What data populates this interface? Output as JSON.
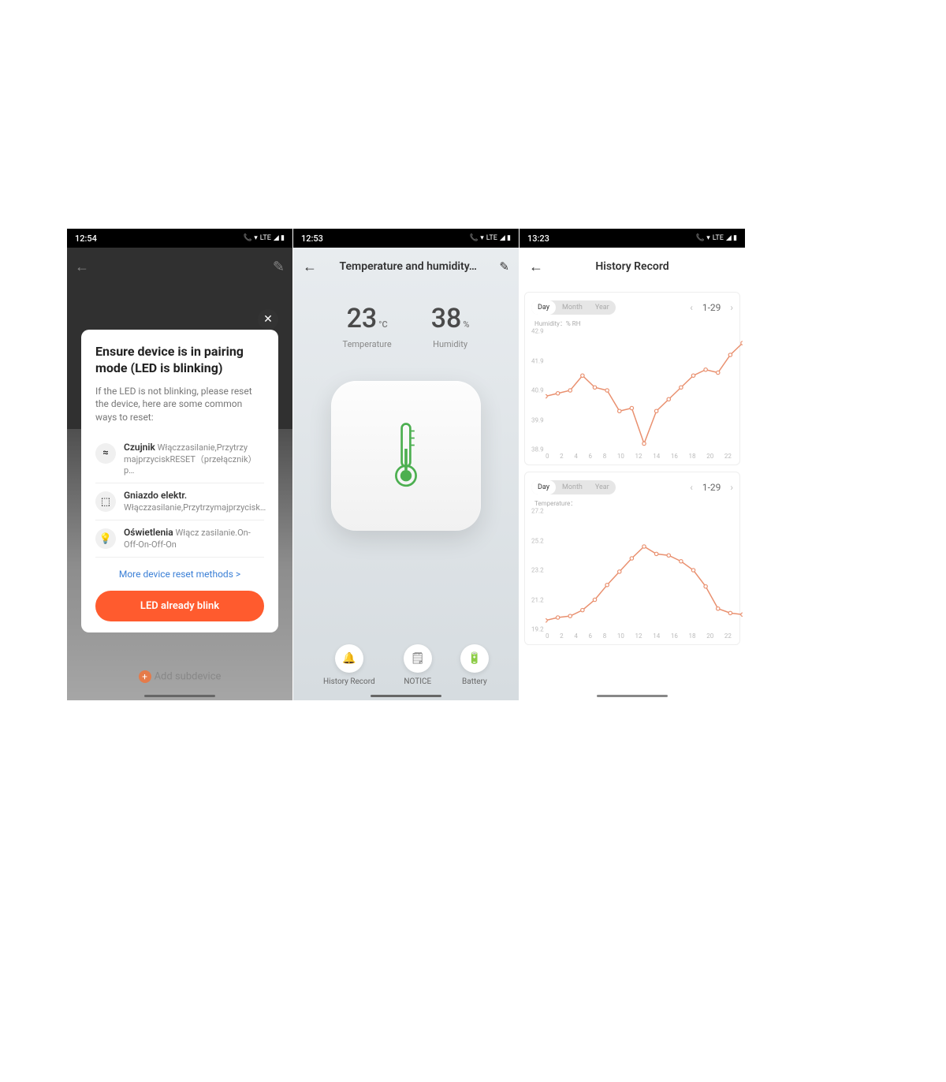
{
  "phone1": {
    "status_time": "12:54",
    "add_subdevice": "Add subdevice",
    "modal": {
      "title": "Ensure device is in pairing mode (LED is blinking)",
      "desc": "If the LED is not blinking, please reset the device, here are some common ways to reset:",
      "items": [
        {
          "icon": "≈",
          "name": "Czujnik",
          "detail": "Włączzasilanie,Przytrzy majprzyciskRESET（przełącznik）p…"
        },
        {
          "icon": "⬚",
          "name": "Gniazdo elektr.",
          "detail": "Włączzasilanie,Przytrzymajprzycisk…"
        },
        {
          "icon": "💡",
          "name": "Oświetlenia",
          "detail": "Włącz zasilanie.On-Off-On-Off-On"
        }
      ],
      "more_link": "More device reset methods >",
      "cta": "LED already blink"
    }
  },
  "phone2": {
    "status_time": "12:53",
    "title": "Temperature and humidity…",
    "temperature": {
      "value": "23",
      "unit": "°C",
      "label": "Temperature"
    },
    "humidity": {
      "value": "38",
      "unit": "%",
      "label": "Humidity"
    },
    "actions": [
      {
        "icon": "🔔",
        "label": "History Record"
      },
      {
        "icon": "🗒",
        "label": "NOTICE"
      },
      {
        "icon": "🔋",
        "label": "Battery"
      }
    ]
  },
  "phone3": {
    "status_time": "13:23",
    "title": "History Record",
    "segments": [
      "Day",
      "Month",
      "Year"
    ],
    "date": "1-29",
    "chart1": {
      "label": "Humidity：% RH",
      "ylim": [
        38.9,
        42.9
      ],
      "yticks": [
        "42.9",
        "41.9",
        "40.9",
        "39.9",
        "38.9"
      ],
      "xticks": [
        "0",
        "2",
        "4",
        "6",
        "8",
        "10",
        "12",
        "14",
        "16",
        "18",
        "20",
        "22"
      ],
      "values": [
        40.7,
        40.8,
        40.9,
        41.4,
        41.0,
        40.9,
        40.2,
        40.3,
        39.1,
        40.2,
        40.6,
        41.0,
        41.4,
        41.6,
        41.5,
        42.1,
        42.5
      ],
      "line_color": "#e9906f",
      "marker_fill": "#ffffff"
    },
    "chart2": {
      "label": "Temperature：",
      "ylim": [
        19.2,
        27.2
      ],
      "yticks": [
        "27.2",
        "25.2",
        "23.2",
        "21.2",
        "19.2"
      ],
      "xticks": [
        "0",
        "2",
        "4",
        "6",
        "8",
        "10",
        "12",
        "14",
        "16",
        "18",
        "20",
        "22"
      ],
      "values": [
        19.8,
        20.0,
        20.1,
        20.5,
        21.2,
        22.2,
        23.1,
        24.0,
        24.8,
        24.3,
        24.2,
        23.8,
        23.2,
        22.1,
        20.6,
        20.3,
        20.2
      ],
      "line_color": "#e9906f",
      "marker_fill": "#ffffff"
    }
  },
  "status_icons": "LTE"
}
